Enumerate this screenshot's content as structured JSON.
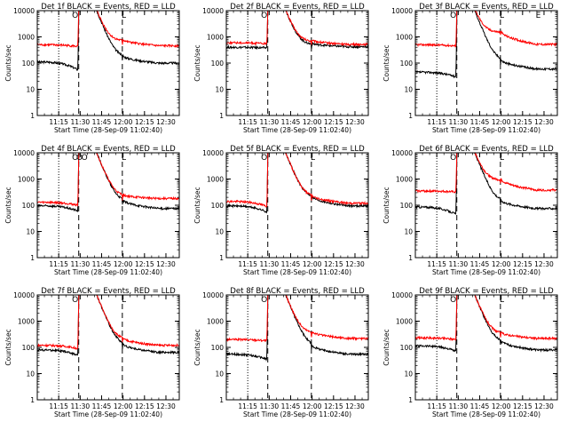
{
  "page": {
    "background": "#ffffff",
    "axis_color": "#000000",
    "events_color": "#000000",
    "lld_color": "#ff0000"
  },
  "chart_data": [
    {
      "type": "line",
      "title": "Det 1f BLACK = Events, RED = LLD",
      "xlabel": "Start Time (28-Sep-09 11:02:40)",
      "ylabel": "Counts/sec",
      "y_scale": "log",
      "ylim": [
        1,
        10000
      ],
      "xlim": [
        "11:02:40",
        "12:42:00"
      ],
      "x_ticks": [
        "11:15",
        "11:30",
        "11:45",
        "12:00",
        "12:15",
        "12:30"
      ],
      "y_ticks": [
        "1",
        "10",
        "100",
        "1000",
        "10000"
      ],
      "x_tick_minutes": [
        15,
        30,
        45,
        60,
        75,
        90
      ],
      "dotted_lines_min": [
        15
      ],
      "dashed_lines_min": [
        29,
        59.5
      ],
      "saa_markers": [
        "O",
        "L"
      ],
      "saa_marker_min": [
        26.5,
        60.5
      ],
      "series": [
        {
          "key": "events",
          "peak_min": 29.2,
          "base": 110,
          "pre_drop": 55,
          "bump": 170,
          "tail": 100
        },
        {
          "key": "lld",
          "peak_min": 29.2,
          "base": 500,
          "pre_drop": 430,
          "bump": 700,
          "tail": 460
        }
      ]
    },
    {
      "type": "line",
      "title": "Det 2f BLACK = Events, RED = LLD",
      "xlabel": "Start Time (28-Sep-09 11:02:40)",
      "ylabel": "Counts/sec",
      "y_scale": "log",
      "ylim": [
        1,
        10000
      ],
      "xlim": [
        "11:02:40",
        "12:42:00"
      ],
      "x_ticks": [
        "11:15",
        "11:30",
        "11:45",
        "12:00",
        "12:15",
        "12:30"
      ],
      "y_ticks": [
        "1",
        "10",
        "100",
        "1000",
        "10000"
      ],
      "x_tick_minutes": [
        15,
        30,
        45,
        60,
        75,
        90
      ],
      "dotted_lines_min": [
        15
      ],
      "dashed_lines_min": [
        29,
        59.5
      ],
      "saa_markers": [
        "O",
        "L"
      ],
      "saa_marker_min": [
        26.5,
        60.5
      ],
      "series": [
        {
          "key": "events",
          "peak_min": 29.2,
          "base": 400,
          "pre_drop": 380,
          "bump": 500,
          "tail": 420
        },
        {
          "key": "lld",
          "peak_min": 29.2,
          "base": 600,
          "pre_drop": 540,
          "bump": 650,
          "tail": 520
        }
      ]
    },
    {
      "type": "line",
      "title": "Det 3f BLACK = Events, RED = LLD",
      "xlabel": "Start Time (28-Sep-09 11:02:40)",
      "ylabel": "Counts/sec",
      "y_scale": "log",
      "ylim": [
        1,
        10000
      ],
      "xlim": [
        "11:02:40",
        "12:42:00"
      ],
      "x_ticks": [
        "11:15",
        "11:30",
        "11:45",
        "12:00",
        "12:15",
        "12:30"
      ],
      "y_ticks": [
        "1",
        "10",
        "100",
        "1000",
        "10000"
      ],
      "x_tick_minutes": [
        15,
        30,
        45,
        60,
        75,
        90
      ],
      "dotted_lines_min": [
        15
      ],
      "dashed_lines_min": [
        29,
        59.5
      ],
      "saa_markers": [
        "O",
        "L",
        "E"
      ],
      "saa_marker_min": [
        26.5,
        60.5,
        86
      ],
      "series": [
        {
          "key": "events",
          "peak_min": 29.2,
          "base": 45,
          "pre_drop": 30,
          "bump": 120,
          "tail": 60
        },
        {
          "key": "lld",
          "peak_min": 29.2,
          "base": 500,
          "pre_drop": 450,
          "bump": 1500,
          "tail": 520
        }
      ]
    },
    {
      "type": "line",
      "title": "Det 4f BLACK = Events, RED = LLD",
      "xlabel": "Start Time (28-Sep-09 11:02:40)",
      "ylabel": "Counts/sec",
      "y_scale": "log",
      "ylim": [
        1,
        10000
      ],
      "xlim": [
        "11:02:40",
        "12:42:00"
      ],
      "x_ticks": [
        "11:15",
        "11:30",
        "11:45",
        "12:00",
        "12:15",
        "12:30"
      ],
      "y_ticks": [
        "1",
        "10",
        "100",
        "1000",
        "10000"
      ],
      "x_tick_minutes": [
        15,
        30,
        45,
        60,
        75,
        90
      ],
      "dotted_lines_min": [
        15
      ],
      "dashed_lines_min": [
        29,
        59.5
      ],
      "saa_markers": [
        "O",
        "O",
        "O",
        "L"
      ],
      "saa_marker_min": [
        26.5,
        29.5,
        33,
        60.5
      ],
      "series": [
        {
          "key": "events",
          "peak_min": 29.2,
          "base": 95,
          "pre_drop": 60,
          "bump": 140,
          "tail": 75
        },
        {
          "key": "lld",
          "peak_min": 29.2,
          "base": 130,
          "pre_drop": 100,
          "bump": 220,
          "tail": 180
        }
      ]
    },
    {
      "type": "line",
      "title": "Det 5f BLACK = Events, RED = LLD",
      "xlabel": "Start Time (28-Sep-09 11:02:40)",
      "ylabel": "Counts/sec",
      "y_scale": "log",
      "ylim": [
        1,
        10000
      ],
      "xlim": [
        "11:02:40",
        "12:42:00"
      ],
      "x_ticks": [
        "11:15",
        "11:30",
        "11:45",
        "12:00",
        "12:15",
        "12:30"
      ],
      "y_ticks": [
        "1",
        "10",
        "100",
        "1000",
        "10000"
      ],
      "x_tick_minutes": [
        15,
        30,
        45,
        60,
        75,
        90
      ],
      "dotted_lines_min": [
        15
      ],
      "dashed_lines_min": [
        29,
        59.5
      ],
      "saa_markers": [
        "O",
        "L"
      ],
      "saa_marker_min": [
        26.5,
        60.5
      ],
      "series": [
        {
          "key": "events",
          "peak_min": 29.2,
          "base": 95,
          "pre_drop": 55,
          "bump": 200,
          "tail": 95
        },
        {
          "key": "lld",
          "peak_min": 29.2,
          "base": 140,
          "pre_drop": 90,
          "bump": 210,
          "tail": 120
        }
      ]
    },
    {
      "type": "line",
      "title": "Det 6f BLACK = Events, RED = LLD",
      "xlabel": "Start Time (28-Sep-09 11:02:40)",
      "ylabel": "Counts/sec",
      "y_scale": "log",
      "ylim": [
        1,
        10000
      ],
      "xlim": [
        "11:02:40",
        "12:42:00"
      ],
      "x_ticks": [
        "11:15",
        "11:30",
        "11:45",
        "12:00",
        "12:15",
        "12:30"
      ],
      "y_ticks": [
        "1",
        "10",
        "100",
        "1000",
        "10000"
      ],
      "x_tick_minutes": [
        15,
        30,
        45,
        60,
        75,
        90
      ],
      "dotted_lines_min": [
        15
      ],
      "dashed_lines_min": [
        29,
        59.5
      ],
      "saa_markers": [
        "O",
        "L"
      ],
      "saa_marker_min": [
        26.5,
        60.5
      ],
      "series": [
        {
          "key": "events",
          "peak_min": 29.2,
          "base": 85,
          "pre_drop": 45,
          "bump": 140,
          "tail": 75
        },
        {
          "key": "lld",
          "peak_min": 29.2,
          "base": 350,
          "pre_drop": 320,
          "bump": 900,
          "tail": 380
        }
      ]
    },
    {
      "type": "line",
      "title": "Det 7f BLACK = Events, RED = LLD",
      "xlabel": "Start Time (28-Sep-09 11:02:40)",
      "ylabel": "Counts/sec",
      "y_scale": "log",
      "ylim": [
        1,
        10000
      ],
      "xlim": [
        "11:02:40",
        "12:42:00"
      ],
      "x_ticks": [
        "11:15",
        "11:30",
        "11:45",
        "12:00",
        "12:15",
        "12:30"
      ],
      "y_ticks": [
        "1",
        "10",
        "100",
        "1000",
        "10000"
      ],
      "x_tick_minutes": [
        15,
        30,
        45,
        60,
        75,
        90
      ],
      "dotted_lines_min": [
        15
      ],
      "dashed_lines_min": [
        29,
        59.5
      ],
      "saa_markers": [
        "O",
        "L"
      ],
      "saa_marker_min": [
        26.5,
        60.5
      ],
      "series": [
        {
          "key": "events",
          "peak_min": 29.2,
          "base": 80,
          "pre_drop": 50,
          "bump": 120,
          "tail": 65
        },
        {
          "key": "lld",
          "peak_min": 29.2,
          "base": 120,
          "pre_drop": 90,
          "bump": 200,
          "tail": 120
        }
      ]
    },
    {
      "type": "line",
      "title": "Det 8f BLACK = Events, RED = LLD",
      "xlabel": "Start Time (28-Sep-09 11:02:40)",
      "ylabel": "Counts/sec",
      "y_scale": "log",
      "ylim": [
        1,
        10000
      ],
      "xlim": [
        "11:02:40",
        "12:42:00"
      ],
      "x_ticks": [
        "11:15",
        "11:30",
        "11:45",
        "12:00",
        "12:15",
        "12:30"
      ],
      "y_ticks": [
        "1",
        "10",
        "100",
        "1000",
        "10000"
      ],
      "x_tick_minutes": [
        15,
        30,
        45,
        60,
        75,
        90
      ],
      "dotted_lines_min": [
        15
      ],
      "dashed_lines_min": [
        29,
        59.5
      ],
      "saa_markers": [
        "O",
        "L"
      ],
      "saa_marker_min": [
        26.5,
        60.5
      ],
      "series": [
        {
          "key": "events",
          "peak_min": 29.2,
          "base": 55,
          "pre_drop": 35,
          "bump": 110,
          "tail": 55
        },
        {
          "key": "lld",
          "peak_min": 29.2,
          "base": 200,
          "pre_drop": 180,
          "bump": 350,
          "tail": 220
        }
      ]
    },
    {
      "type": "line",
      "title": "Det 9f BLACK = Events, RED = LLD",
      "xlabel": "Start Time (28-Sep-09 11:02:40)",
      "ylabel": "Counts/sec",
      "y_scale": "log",
      "ylim": [
        1,
        10000
      ],
      "xlim": [
        "11:02:40",
        "12:42:00"
      ],
      "x_ticks": [
        "11:15",
        "11:30",
        "11:45",
        "12:00",
        "12:15",
        "12:30"
      ],
      "y_ticks": [
        "1",
        "10",
        "100",
        "1000",
        "10000"
      ],
      "x_tick_minutes": [
        15,
        30,
        45,
        60,
        75,
        90
      ],
      "dotted_lines_min": [
        15
      ],
      "dashed_lines_min": [
        29,
        59.5
      ],
      "saa_markers": [
        "O",
        "L"
      ],
      "saa_marker_min": [
        26.5,
        60.5
      ],
      "series": [
        {
          "key": "events",
          "peak_min": 29.2,
          "base": 115,
          "pre_drop": 70,
          "bump": 160,
          "tail": 80
        },
        {
          "key": "lld",
          "peak_min": 29.2,
          "base": 230,
          "pre_drop": 200,
          "bump": 330,
          "tail": 220
        }
      ]
    }
  ]
}
